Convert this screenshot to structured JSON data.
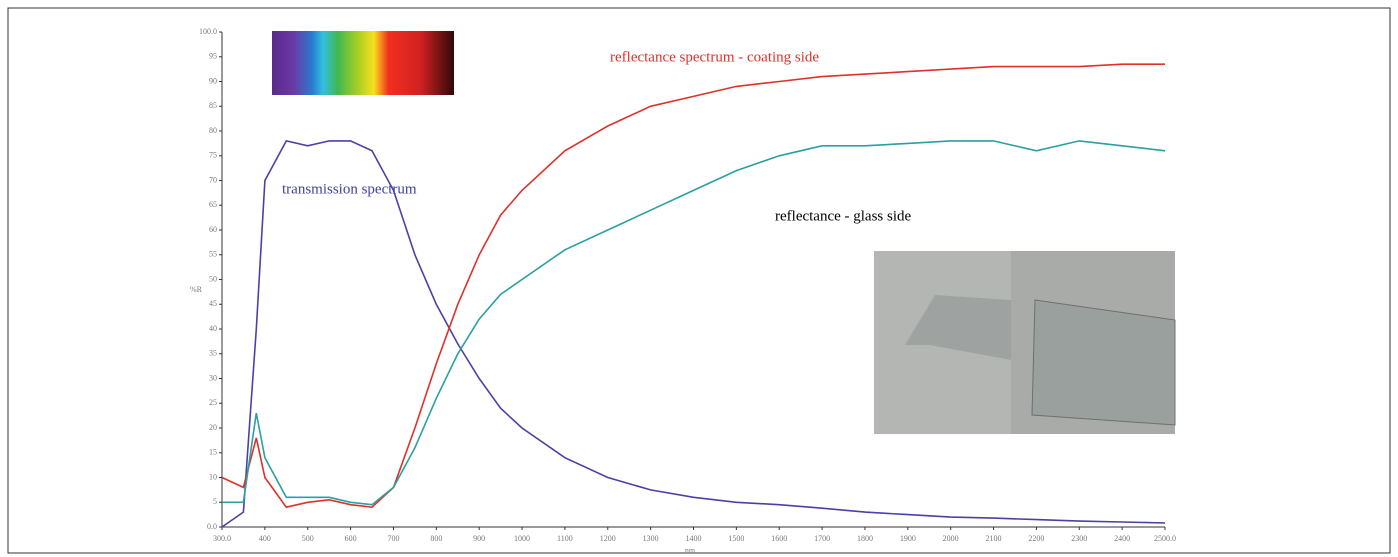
{
  "chart_data": {
    "type": "line",
    "x_label": "nm",
    "y_label": "%R",
    "annotations": [
      {
        "text": "reflectance spectrum - coating side",
        "color": "#e0302a"
      },
      {
        "text": "transmission spectrum",
        "color": "#4040a0"
      },
      {
        "text": "reflectance - glass side",
        "color": "#000000"
      }
    ],
    "x": [
      300,
      350,
      380,
      400,
      450,
      500,
      550,
      600,
      650,
      700,
      750,
      800,
      850,
      900,
      950,
      1000,
      1100,
      1200,
      1300,
      1400,
      1500,
      1600,
      1700,
      1800,
      1900,
      2000,
      2100,
      2200,
      2300,
      2400,
      2500
    ],
    "series": [
      {
        "name": "transmission spectrum",
        "color": "#4a40a8",
        "values": [
          0,
          3,
          40,
          70,
          78,
          77,
          78,
          78,
          76,
          68,
          55,
          45,
          37,
          30,
          24,
          20,
          14,
          10,
          7.5,
          6,
          5,
          4.5,
          3.8,
          3,
          2.5,
          2,
          1.8,
          1.5,
          1.2,
          1,
          0.8
        ]
      },
      {
        "name": "reflectance spectrum - coating side",
        "color": "#e0302a",
        "values": [
          10,
          8,
          18,
          10,
          4,
          5,
          5.5,
          4.5,
          4,
          8,
          20,
          33,
          45,
          55,
          63,
          68,
          76,
          81,
          85,
          87,
          89,
          90,
          91,
          91.5,
          92,
          92.5,
          93,
          93,
          93,
          93.5,
          93.5
        ]
      },
      {
        "name": "reflectance - glass side",
        "color": "#2aa0a0",
        "values": [
          5,
          5,
          23,
          14,
          6,
          6,
          6,
          5,
          4.5,
          8,
          16,
          26,
          35,
          42,
          47,
          50,
          56,
          60,
          64,
          68,
          72,
          75,
          77,
          77,
          77.5,
          78,
          78,
          76,
          78,
          77,
          76
        ]
      }
    ],
    "xlim": [
      300,
      2500
    ],
    "xticks": [
      {
        "value": 300,
        "label": "300.0"
      },
      400,
      500,
      600,
      700,
      800,
      900,
      1000,
      1100,
      1200,
      1300,
      1400,
      1500,
      1600,
      1700,
      1800,
      1900,
      2000,
      2100,
      2200,
      2300,
      2400,
      {
        "value": 2500,
        "label": "2500.0"
      }
    ],
    "ylim": [
      0,
      100
    ],
    "yticks": [
      {
        "value": 0,
        "label": "0.0"
      },
      5,
      10,
      15,
      20,
      25,
      30,
      35,
      40,
      45,
      50,
      55,
      60,
      65,
      70,
      75,
      80,
      85,
      90,
      95,
      {
        "value": 100,
        "label": "100.0"
      }
    ],
    "grid": false
  }
}
